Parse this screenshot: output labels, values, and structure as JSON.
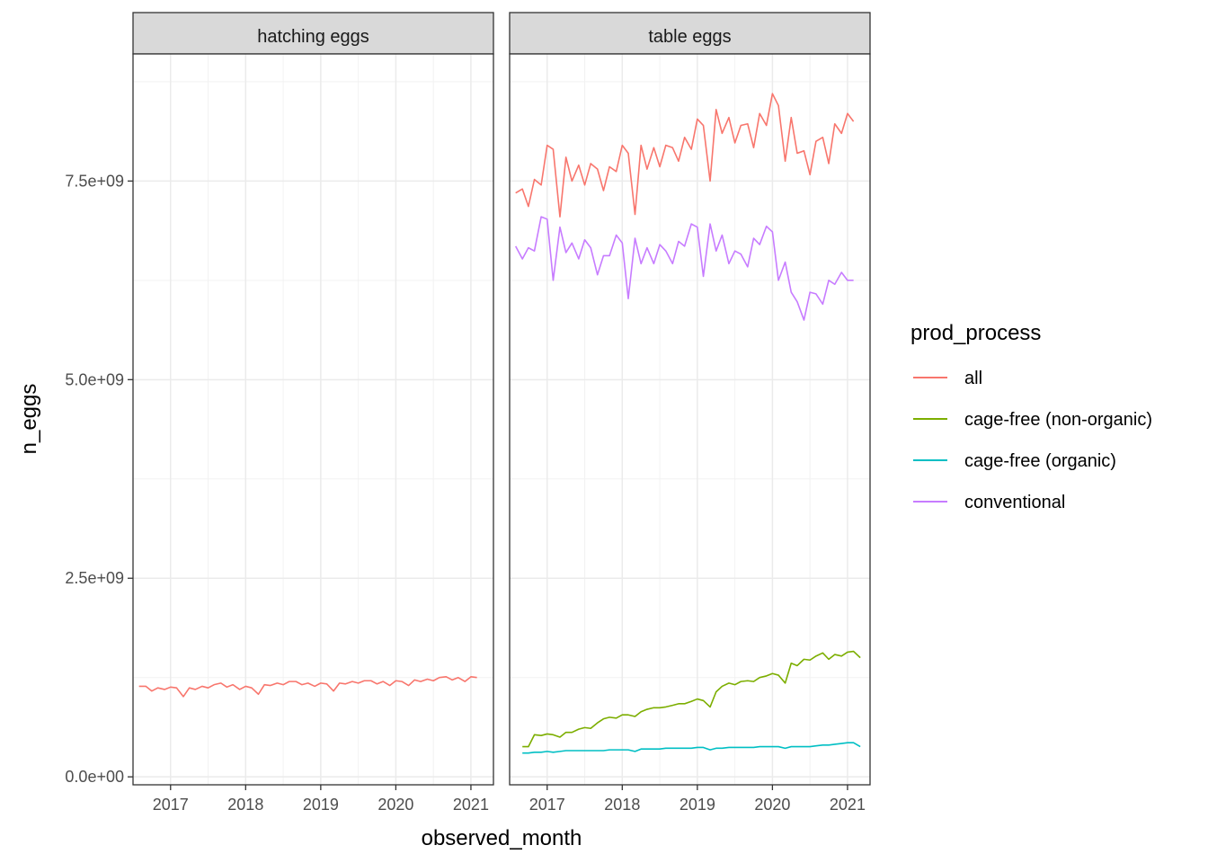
{
  "chart_data": {
    "type": "line",
    "xlabel": "observed_month",
    "ylabel": "n_eggs",
    "x_ticks": [
      2017,
      2018,
      2019,
      2020,
      2021
    ],
    "xlim": [
      2016.5,
      2021.3
    ],
    "y_ticks": [
      0,
      2500000000,
      5000000000,
      7500000000
    ],
    "y_tick_labels": [
      "0.0e+00",
      "2.5e+09",
      "5.0e+09",
      "7.5e+09"
    ],
    "ylim": [
      -100000000,
      9100000000
    ],
    "grid": true,
    "legend": {
      "title": "prod_process",
      "placement": "right",
      "entries": [
        {
          "name": "all",
          "color": "#F8766D"
        },
        {
          "name": "cage-free (non-organic)",
          "color": "#7CAE00"
        },
        {
          "name": "cage-free (organic)",
          "color": "#00BFC4"
        },
        {
          "name": "conventional",
          "color": "#C77CFF"
        }
      ]
    },
    "panels": [
      {
        "strip": "hatching eggs",
        "series": [
          {
            "name": "all",
            "color": "#F8766D",
            "x": [
              2016.58,
              2016.67,
              2016.75,
              2016.83,
              2016.92,
              2017.0,
              2017.08,
              2017.17,
              2017.25,
              2017.33,
              2017.42,
              2017.5,
              2017.58,
              2017.67,
              2017.75,
              2017.83,
              2017.92,
              2018.0,
              2018.08,
              2018.17,
              2018.25,
              2018.33,
              2018.42,
              2018.5,
              2018.58,
              2018.67,
              2018.75,
              2018.83,
              2018.92,
              2019.0,
              2019.08,
              2019.17,
              2019.25,
              2019.33,
              2019.42,
              2019.5,
              2019.58,
              2019.67,
              2019.75,
              2019.83,
              2019.92,
              2020.0,
              2020.08,
              2020.17,
              2020.25,
              2020.33,
              2020.42,
              2020.5,
              2020.58,
              2020.67,
              2020.75,
              2020.83,
              2020.92,
              2021.0,
              2021.08
            ],
            "y": [
              1140000000.0,
              1140000000.0,
              1080000000.0,
              1120000000.0,
              1100000000.0,
              1130000000.0,
              1120000000.0,
              1010000000.0,
              1120000000.0,
              1100000000.0,
              1140000000.0,
              1120000000.0,
              1160000000.0,
              1180000000.0,
              1130000000.0,
              1160000000.0,
              1100000000.0,
              1140000000.0,
              1120000000.0,
              1040000000.0,
              1160000000.0,
              1150000000.0,
              1180000000.0,
              1160000000.0,
              1200000000.0,
              1200000000.0,
              1160000000.0,
              1180000000.0,
              1140000000.0,
              1180000000.0,
              1170000000.0,
              1080000000.0,
              1180000000.0,
              1170000000.0,
              1200000000.0,
              1180000000.0,
              1210000000.0,
              1210000000.0,
              1170000000.0,
              1200000000.0,
              1150000000.0,
              1210000000.0,
              1200000000.0,
              1150000000.0,
              1220000000.0,
              1200000000.0,
              1230000000.0,
              1210000000.0,
              1250000000.0,
              1260000000.0,
              1220000000.0,
              1250000000.0,
              1200000000.0,
              1260000000.0,
              1250000000.0
            ]
          }
        ]
      },
      {
        "strip": "table eggs",
        "series": [
          {
            "name": "all",
            "color": "#F8766D",
            "x": [
              2016.58,
              2016.67,
              2016.75,
              2016.83,
              2016.92,
              2017.0,
              2017.08,
              2017.17,
              2017.25,
              2017.33,
              2017.42,
              2017.5,
              2017.58,
              2017.67,
              2017.75,
              2017.83,
              2017.92,
              2018.0,
              2018.08,
              2018.17,
              2018.25,
              2018.33,
              2018.42,
              2018.5,
              2018.58,
              2018.67,
              2018.75,
              2018.83,
              2018.92,
              2019.0,
              2019.08,
              2019.17,
              2019.25,
              2019.33,
              2019.42,
              2019.5,
              2019.58,
              2019.67,
              2019.75,
              2019.83,
              2019.92,
              2020.0,
              2020.08,
              2020.17,
              2020.25,
              2020.33,
              2020.42,
              2020.5,
              2020.58,
              2020.67,
              2020.75,
              2020.83,
              2020.92,
              2021.0,
              2021.08
            ],
            "y": [
              7350000000.0,
              7400000000.0,
              7180000000.0,
              7520000000.0,
              7450000000.0,
              7950000000.0,
              7900000000.0,
              7050000000.0,
              7800000000.0,
              7500000000.0,
              7700000000.0,
              7450000000.0,
              7720000000.0,
              7650000000.0,
              7380000000.0,
              7680000000.0,
              7620000000.0,
              7950000000.0,
              7850000000.0,
              7080000000.0,
              7950000000.0,
              7650000000.0,
              7920000000.0,
              7680000000.0,
              7950000000.0,
              7920000000.0,
              7750000000.0,
              8050000000.0,
              7900000000.0,
              8280000000.0,
              8200000000.0,
              7500000000.0,
              8400000000.0,
              8100000000.0,
              8300000000.0,
              7980000000.0,
              8200000000.0,
              8220000000.0,
              7920000000.0,
              8350000000.0,
              8200000000.0,
              8600000000.0,
              8450000000.0,
              7750000000.0,
              8300000000.0,
              7850000000.0,
              7880000000.0,
              7580000000.0,
              8000000000.0,
              8050000000.0,
              7720000000.0,
              8220000000.0,
              8100000000.0,
              8350000000.0,
              8250000000.0
            ]
          },
          {
            "name": "conventional",
            "color": "#C77CFF",
            "x": [
              2016.58,
              2016.67,
              2016.75,
              2016.83,
              2016.92,
              2017.0,
              2017.08,
              2017.17,
              2017.25,
              2017.33,
              2017.42,
              2017.5,
              2017.58,
              2017.67,
              2017.75,
              2017.83,
              2017.92,
              2018.0,
              2018.08,
              2018.17,
              2018.25,
              2018.33,
              2018.42,
              2018.5,
              2018.58,
              2018.67,
              2018.75,
              2018.83,
              2018.92,
              2019.0,
              2019.08,
              2019.17,
              2019.25,
              2019.33,
              2019.42,
              2019.5,
              2019.58,
              2019.67,
              2019.75,
              2019.83,
              2019.92,
              2020.0,
              2020.08,
              2020.17,
              2020.25,
              2020.33,
              2020.42,
              2020.5,
              2020.58,
              2020.67,
              2020.75,
              2020.83,
              2020.92,
              2021.0,
              2021.08
            ],
            "y": [
              6680000000.0,
              6520000000.0,
              6660000000.0,
              6620000000.0,
              7050000000.0,
              7020000000.0,
              6250000000.0,
              6920000000.0,
              6600000000.0,
              6720000000.0,
              6520000000.0,
              6760000000.0,
              6660000000.0,
              6320000000.0,
              6560000000.0,
              6560000000.0,
              6820000000.0,
              6720000000.0,
              6020000000.0,
              6780000000.0,
              6460000000.0,
              6660000000.0,
              6460000000.0,
              6700000000.0,
              6620000000.0,
              6460000000.0,
              6740000000.0,
              6680000000.0,
              6960000000.0,
              6920000000.0,
              6300000000.0,
              6960000000.0,
              6620000000.0,
              6820000000.0,
              6460000000.0,
              6620000000.0,
              6580000000.0,
              6420000000.0,
              6780000000.0,
              6700000000.0,
              6930000000.0,
              6860000000.0,
              6250000000.0,
              6480000000.0,
              6100000000.0,
              5980000000.0,
              5750000000.0,
              6100000000.0,
              6080000000.0,
              5950000000.0,
              6250000000.0,
              6200000000.0,
              6350000000.0,
              6250000000.0,
              6250000000.0
            ]
          },
          {
            "name": "cage-free (non-organic)",
            "color": "#7CAE00",
            "x": [
              2016.67,
              2016.75,
              2016.83,
              2016.92,
              2017.0,
              2017.08,
              2017.17,
              2017.25,
              2017.33,
              2017.42,
              2017.5,
              2017.58,
              2017.67,
              2017.75,
              2017.83,
              2017.92,
              2018.0,
              2018.08,
              2018.17,
              2018.25,
              2018.33,
              2018.42,
              2018.5,
              2018.58,
              2018.67,
              2018.75,
              2018.83,
              2018.92,
              2019.0,
              2019.08,
              2019.17,
              2019.25,
              2019.33,
              2019.42,
              2019.5,
              2019.58,
              2019.67,
              2019.75,
              2019.83,
              2019.92,
              2020.0,
              2020.08,
              2020.17,
              2020.25,
              2020.33,
              2020.42,
              2020.5,
              2020.58,
              2020.67,
              2020.75,
              2020.83,
              2020.92,
              2021.0,
              2021.08,
              2021.17
            ],
            "y": [
              380000000.0,
              380000000.0,
              530000000.0,
              520000000.0,
              540000000.0,
              530000000.0,
              500000000.0,
              560000000.0,
              560000000.0,
              600000000.0,
              620000000.0,
              610000000.0,
              680000000.0,
              730000000.0,
              750000000.0,
              740000000.0,
              780000000.0,
              780000000.0,
              760000000.0,
              820000000.0,
              850000000.0,
              870000000.0,
              870000000.0,
              880000000.0,
              900000000.0,
              920000000.0,
              920000000.0,
              950000000.0,
              980000000.0,
              960000000.0,
              880000000.0,
              1070000000.0,
              1140000000.0,
              1180000000.0,
              1160000000.0,
              1200000000.0,
              1210000000.0,
              1200000000.0,
              1250000000.0,
              1270000000.0,
              1300000000.0,
              1280000000.0,
              1180000000.0,
              1430000000.0,
              1400000000.0,
              1480000000.0,
              1470000000.0,
              1520000000.0,
              1560000000.0,
              1480000000.0,
              1540000000.0,
              1520000000.0,
              1570000000.0,
              1580000000.0,
              1500000000.0
            ]
          },
          {
            "name": "cage-free (organic)",
            "color": "#00BFC4",
            "x": [
              2016.67,
              2016.75,
              2016.83,
              2016.92,
              2017.0,
              2017.08,
              2017.17,
              2017.25,
              2017.33,
              2017.42,
              2017.5,
              2017.58,
              2017.67,
              2017.75,
              2017.83,
              2017.92,
              2018.0,
              2018.08,
              2018.17,
              2018.25,
              2018.33,
              2018.42,
              2018.5,
              2018.58,
              2018.67,
              2018.75,
              2018.83,
              2018.92,
              2019.0,
              2019.08,
              2019.17,
              2019.25,
              2019.33,
              2019.42,
              2019.5,
              2019.58,
              2019.67,
              2019.75,
              2019.83,
              2019.92,
              2020.0,
              2020.08,
              2020.17,
              2020.25,
              2020.33,
              2020.42,
              2020.5,
              2020.58,
              2020.67,
              2020.75,
              2020.83,
              2020.92,
              2021.0,
              2021.08,
              2021.17
            ],
            "y": [
              300000000.0,
              300000000.0,
              310000000.0,
              310000000.0,
              320000000.0,
              310000000.0,
              320000000.0,
              330000000.0,
              330000000.0,
              330000000.0,
              330000000.0,
              330000000.0,
              330000000.0,
              330000000.0,
              340000000.0,
              340000000.0,
              340000000.0,
              340000000.0,
              320000000.0,
              350000000.0,
              350000000.0,
              350000000.0,
              350000000.0,
              360000000.0,
              360000000.0,
              360000000.0,
              360000000.0,
              360000000.0,
              370000000.0,
              370000000.0,
              340000000.0,
              360000000.0,
              360000000.0,
              370000000.0,
              370000000.0,
              370000000.0,
              370000000.0,
              370000000.0,
              380000000.0,
              380000000.0,
              380000000.0,
              380000000.0,
              360000000.0,
              380000000.0,
              380000000.0,
              380000000.0,
              380000000.0,
              390000000.0,
              400000000.0,
              400000000.0,
              410000000.0,
              420000000.0,
              430000000.0,
              430000000.0,
              380000000.0
            ]
          }
        ]
      }
    ]
  }
}
